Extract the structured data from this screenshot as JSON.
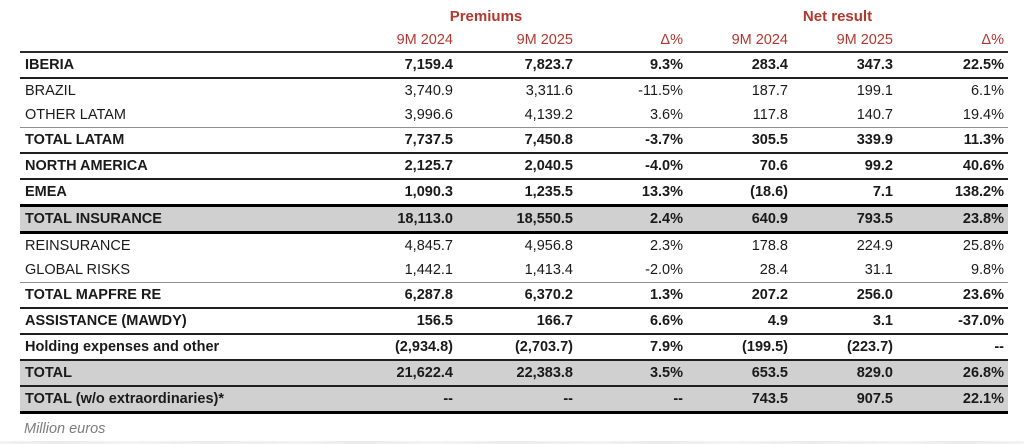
{
  "document": {
    "footnote": "Million euros"
  },
  "colors": {
    "accent_red": "#b3372e",
    "shaded_row_bg": "#d0d0d0",
    "footnote_gray": "#7d7d7d",
    "text_black": "#1a1a1a"
  },
  "table": {
    "groups": [
      {
        "label": "Premiums"
      },
      {
        "label": "Net result"
      }
    ],
    "col_headers": [
      "9M 2024",
      "9M 2025",
      "Δ%",
      "9M 2024",
      "9M 2025",
      "Δ%"
    ],
    "rows": [
      {
        "label": "IBERIA",
        "bold": true,
        "shaded": false,
        "rule": "medium",
        "cells": [
          "7,159.4",
          "7,823.7",
          "9.3%",
          "283.4",
          "347.3",
          "22.5%"
        ]
      },
      {
        "label": "BRAZIL",
        "bold": false,
        "shaded": false,
        "rule": "none",
        "cells": [
          "3,740.9",
          "3,311.6",
          "-11.5%",
          "187.7",
          "199.1",
          "6.1%"
        ]
      },
      {
        "label": "OTHER LATAM",
        "bold": false,
        "shaded": false,
        "rule": "thin",
        "cells": [
          "3,996.6",
          "4,139.2",
          "3.6%",
          "117.8",
          "140.7",
          "19.4%"
        ]
      },
      {
        "label": "TOTAL LATAM",
        "bold": true,
        "shaded": false,
        "rule": "medium",
        "cells": [
          "7,737.5",
          "7,450.8",
          "-3.7%",
          "305.5",
          "339.9",
          "11.3%"
        ]
      },
      {
        "label": "NORTH AMERICA",
        "bold": true,
        "shaded": false,
        "rule": "medium",
        "cells": [
          "2,125.7",
          "2,040.5",
          "-4.0%",
          "70.6",
          "99.2",
          "40.6%"
        ]
      },
      {
        "label": "EMEA",
        "bold": true,
        "shaded": false,
        "rule": "heavy",
        "cells": [
          "1,090.3",
          "1,235.5",
          "13.3%",
          "(18.6)",
          "7.1",
          "138.2%"
        ]
      },
      {
        "label": "TOTAL INSURANCE",
        "bold": true,
        "shaded": true,
        "rule": "heavy",
        "cells": [
          "18,113.0",
          "18,550.5",
          "2.4%",
          "640.9",
          "793.5",
          "23.8%"
        ]
      },
      {
        "label": "REINSURANCE",
        "bold": false,
        "shaded": false,
        "rule": "none",
        "cells": [
          "4,845.7",
          "4,956.8",
          "2.3%",
          "178.8",
          "224.9",
          "25.8%"
        ]
      },
      {
        "label": "GLOBAL RISKS",
        "bold": false,
        "shaded": false,
        "rule": "thin",
        "cells": [
          "1,442.1",
          "1,413.4",
          "-2.0%",
          "28.4",
          "31.1",
          "9.8%"
        ]
      },
      {
        "label": "TOTAL MAPFRE RE",
        "bold": true,
        "shaded": false,
        "rule": "medium",
        "cells": [
          "6,287.8",
          "6,370.2",
          "1.3%",
          "207.2",
          "256.0",
          "23.6%"
        ]
      },
      {
        "label": "ASSISTANCE (MAWDY)",
        "bold": true,
        "shaded": false,
        "rule": "medium",
        "cells": [
          "156.5",
          "166.7",
          "6.6%",
          "4.9",
          "3.1",
          "-37.0%"
        ]
      },
      {
        "label": "Holding expenses and other",
        "bold": true,
        "shaded": false,
        "rule": "medium",
        "cells": [
          "(2,934.8)",
          "(2,703.7)",
          "7.9%",
          "(199.5)",
          "(223.7)",
          "--"
        ]
      },
      {
        "label": "TOTAL",
        "bold": true,
        "shaded": true,
        "rule": "medium",
        "cells": [
          "21,622.4",
          "22,383.8",
          "3.5%",
          "653.5",
          "829.0",
          "26.8%"
        ]
      },
      {
        "label": "TOTAL (w/o extraordinaries)*",
        "bold": true,
        "shaded": true,
        "rule": "heavy",
        "cells": [
          "--",
          "--",
          "--",
          "743.5",
          "907.5",
          "22.1%"
        ]
      }
    ]
  }
}
